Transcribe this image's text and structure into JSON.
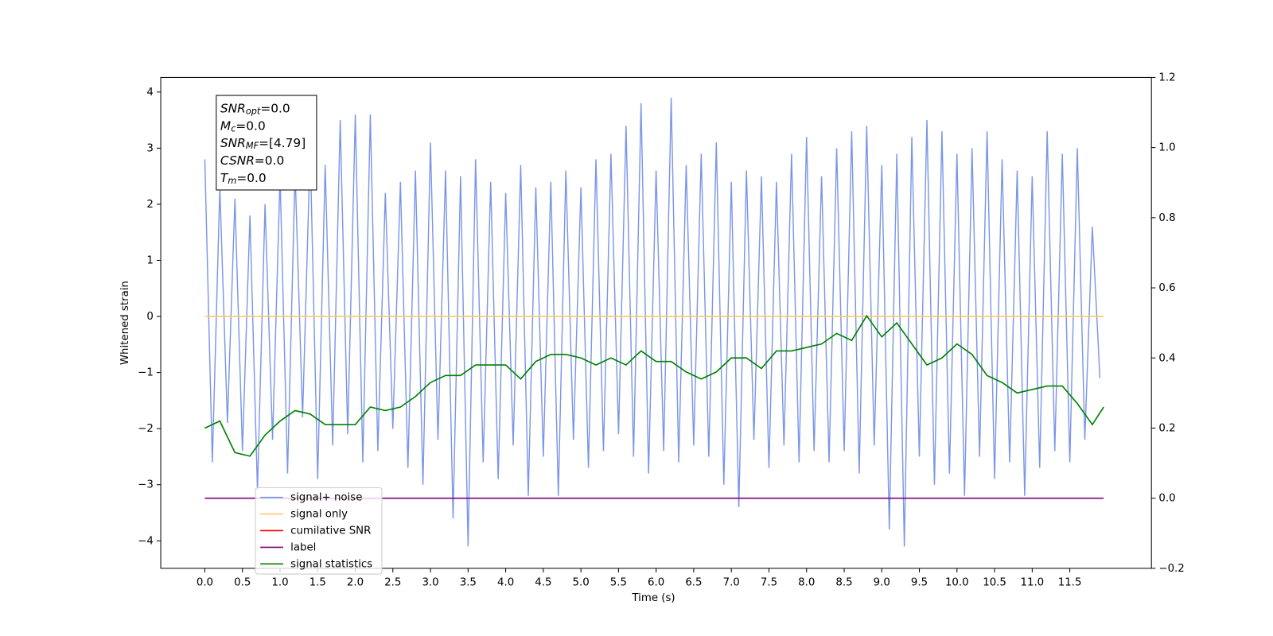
{
  "chart_data": {
    "type": "line",
    "xlabel": "Time (s)",
    "ylabel": "Whitened strain",
    "xlim": [
      -0.586,
      12.585
    ],
    "ylim": [
      -4.49,
      4.26
    ],
    "y2lim": [
      -0.2,
      1.2
    ],
    "xticks": [
      {
        "value": 0,
        "label": "0.0"
      },
      0.5,
      {
        "value": 1,
        "label": "1.0"
      },
      1.5,
      {
        "value": 2,
        "label": "2.0"
      },
      2.5,
      {
        "value": 3,
        "label": "3.0"
      },
      3.5,
      {
        "value": 4,
        "label": "4.0"
      },
      4.5,
      {
        "value": 5,
        "label": "5.0"
      },
      5.5,
      {
        "value": 6,
        "label": "6.0"
      },
      6.5,
      {
        "value": 7,
        "label": "7.0"
      },
      7.5,
      {
        "value": 8,
        "label": "8.0"
      },
      8.5,
      {
        "value": 9,
        "label": "9.0"
      },
      9.5,
      {
        "value": 10,
        "label": "10.0"
      },
      10.5,
      {
        "value": 11,
        "label": "11.0"
      },
      11.5
    ],
    "yticks": [
      {
        "value": -4,
        "label": "−4"
      },
      {
        "value": -3,
        "label": "−3"
      },
      {
        "value": -2,
        "label": "−2"
      },
      {
        "value": -1,
        "label": "−1"
      },
      0,
      1,
      2,
      3,
      4
    ],
    "y2ticks": [
      {
        "value": -0.2,
        "label": "−0.2"
      },
      {
        "value": 0,
        "label": "0.0"
      },
      0.2,
      0.4,
      0.6,
      0.8,
      {
        "value": 1,
        "label": "1.0"
      },
      1.2
    ],
    "legend": true,
    "annotation": [
      {
        "text": "SNR",
        "sub": "opt",
        "rest": "=0.0"
      },
      {
        "text": "M",
        "sub": "c",
        "rest": "=0.0"
      },
      {
        "text": "SNR",
        "sub": "MF",
        "rest": "=[4.79]"
      },
      {
        "text": "CSNR",
        "rest": "=0.0"
      },
      {
        "text": "T",
        "sub": "m",
        "rest": "=0.0"
      }
    ],
    "series": [
      {
        "name": "signal+ noise",
        "color": "#7b96e8",
        "x": [
          0.0,
          0.1,
          0.2,
          0.3,
          0.4,
          0.5,
          0.6,
          0.7,
          0.8,
          0.9,
          1.0,
          1.1,
          1.2,
          1.3,
          1.4,
          1.5,
          1.6,
          1.7,
          1.8,
          1.9,
          2.0,
          2.1,
          2.2,
          2.3,
          2.4,
          2.5,
          2.6,
          2.7,
          2.8,
          2.9,
          3.0,
          3.1,
          3.2,
          3.3,
          3.4,
          3.5,
          3.6,
          3.7,
          3.8,
          3.9,
          4.0,
          4.1,
          4.2,
          4.3,
          4.4,
          4.5,
          4.6,
          4.7,
          4.8,
          4.9,
          5.0,
          5.1,
          5.2,
          5.3,
          5.4,
          5.5,
          5.6,
          5.7,
          5.8,
          5.9,
          6.0,
          6.1,
          6.2,
          6.3,
          6.4,
          6.5,
          6.6,
          6.7,
          6.8,
          6.9,
          7.0,
          7.1,
          7.2,
          7.3,
          7.4,
          7.5,
          7.6,
          7.7,
          7.8,
          7.9,
          8.0,
          8.1,
          8.2,
          8.3,
          8.4,
          8.5,
          8.6,
          8.7,
          8.8,
          8.9,
          9.0,
          9.1,
          9.2,
          9.3,
          9.4,
          9.5,
          9.6,
          9.7,
          9.8,
          9.9,
          10.0,
          10.1,
          10.2,
          10.3,
          10.4,
          10.5,
          10.6,
          10.7,
          10.8,
          10.9,
          11.0,
          11.1,
          11.2,
          11.3,
          11.4,
          11.5,
          11.6,
          11.7,
          11.8,
          11.9
        ],
        "values": [
          2.8,
          -2.6,
          2.3,
          -1.9,
          2.1,
          -2.4,
          1.8,
          -3.1,
          2.0,
          -2.2,
          2.5,
          -2.8,
          2.6,
          -1.8,
          3.0,
          -2.9,
          2.7,
          -2.3,
          3.5,
          -2.1,
          3.6,
          -2.6,
          3.6,
          -2.4,
          2.2,
          -2.0,
          2.4,
          -2.7,
          2.6,
          -3.0,
          3.1,
          -2.2,
          2.6,
          -3.6,
          2.5,
          -4.1,
          2.8,
          -2.6,
          2.4,
          -2.9,
          2.2,
          -2.3,
          2.7,
          -3.2,
          2.3,
          -2.5,
          2.4,
          -3.2,
          2.6,
          -2.2,
          2.3,
          -2.7,
          2.8,
          -2.4,
          2.9,
          -2.1,
          3.4,
          -2.5,
          3.8,
          -2.8,
          2.6,
          -2.4,
          3.9,
          -2.6,
          2.7,
          -2.3,
          2.9,
          -2.5,
          3.1,
          -3.0,
          2.4,
          -3.4,
          2.6,
          -2.2,
          2.5,
          -2.7,
          2.4,
          -2.3,
          2.9,
          -2.6,
          3.2,
          -2.4,
          2.5,
          -2.6,
          3.0,
          -2.4,
          3.3,
          -2.8,
          3.4,
          -2.3,
          2.7,
          -3.8,
          2.9,
          -4.1,
          3.2,
          -2.5,
          3.5,
          -3.0,
          3.3,
          -2.8,
          2.9,
          -3.2,
          3.0,
          -2.5,
          3.3,
          -2.9,
          2.8,
          -2.6,
          2.6,
          -3.2,
          2.5,
          -2.7,
          3.3,
          -2.4,
          2.9,
          -2.6,
          3.0,
          -2.2,
          1.6,
          -1.1
        ]
      },
      {
        "name": "signal only",
        "color": "#ffc870",
        "x": [
          0,
          11.95
        ],
        "values": [
          0,
          0
        ]
      },
      {
        "name": "cumilative SNR",
        "color": "red"
      },
      {
        "name": "label",
        "color": "purple",
        "axis": "y2",
        "x": [
          0,
          11.95
        ],
        "values": [
          0,
          0
        ]
      },
      {
        "name": "signal statistics",
        "color": "green",
        "axis": "y2",
        "x": [
          0.0,
          0.2,
          0.4,
          0.6,
          0.8,
          1.0,
          1.2,
          1.4,
          1.6,
          1.8,
          2.0,
          2.2,
          2.4,
          2.6,
          2.8,
          3.0,
          3.2,
          3.4,
          3.6,
          3.8,
          4.0,
          4.2,
          4.4,
          4.6,
          4.8,
          5.0,
          5.2,
          5.4,
          5.6,
          5.8,
          6.0,
          6.2,
          6.4,
          6.6,
          6.8,
          7.0,
          7.2,
          7.4,
          7.6,
          7.8,
          8.0,
          8.2,
          8.4,
          8.6,
          8.8,
          9.0,
          9.2,
          9.4,
          9.6,
          9.8,
          10.0,
          10.2,
          10.4,
          10.6,
          10.8,
          11.0,
          11.2,
          11.4,
          11.6,
          11.8,
          11.95
        ],
        "values": [
          0.2,
          0.22,
          0.13,
          0.12,
          0.18,
          0.22,
          0.25,
          0.24,
          0.21,
          0.21,
          0.21,
          0.26,
          0.25,
          0.26,
          0.29,
          0.33,
          0.35,
          0.35,
          0.38,
          0.38,
          0.38,
          0.34,
          0.39,
          0.41,
          0.41,
          0.4,
          0.38,
          0.4,
          0.38,
          0.42,
          0.39,
          0.39,
          0.36,
          0.34,
          0.36,
          0.4,
          0.4,
          0.37,
          0.42,
          0.42,
          0.43,
          0.44,
          0.47,
          0.45,
          0.52,
          0.46,
          0.5,
          0.44,
          0.38,
          0.4,
          0.44,
          0.41,
          0.35,
          0.33,
          0.3,
          0.31,
          0.32,
          0.32,
          0.27,
          0.21,
          0.26
        ]
      }
    ]
  }
}
